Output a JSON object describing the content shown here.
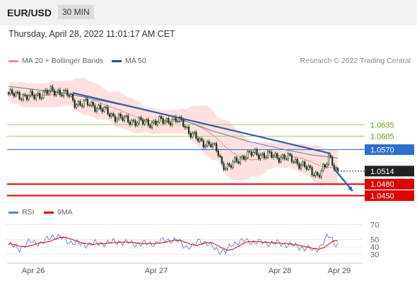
{
  "header": {
    "symbol": "EUR/USD",
    "timeframe": "30 MIN"
  },
  "timestamp": "Thursday, April 28, 2022 11:01:17 AM CET",
  "legend_main": [
    {
      "label": "MA 20 + Bollinger Bands",
      "color": "#f28b8b"
    },
    {
      "label": "MA 50",
      "color": "#2c4f8c"
    }
  ],
  "credit": "Research © 2022 Trading Central",
  "legend_rsi": [
    {
      "label": "RSI",
      "color": "#5b7fd6"
    },
    {
      "label": "9MA",
      "color": "#dd0000"
    }
  ],
  "x_labels": [
    "Apr 26",
    "Apr 27",
    "Apr 28",
    "Apr 29"
  ],
  "colors": {
    "resistance_green": "#a6cc6f",
    "level_blue": "#2f6fd0",
    "level_red": "#e00000",
    "current_label": "#222222",
    "candle_up": "#ffffff",
    "candle_down": "#1a3a1a",
    "bands": "#ffd6d6"
  },
  "chart_data": [
    {
      "type": "candlestick",
      "title": "EUR/USD 30 MIN",
      "ylim": [
        1.0438,
        1.0785
      ],
      "levels": [
        {
          "value": 1.0635,
          "label": "1.0635",
          "color": "#a6cc6f",
          "style": "thin"
        },
        {
          "value": 1.0605,
          "label": "1.0605",
          "color": "#a6cc6f",
          "style": "thin"
        },
        {
          "value": 1.057,
          "label": "1.0570",
          "color": "#2f6fd0",
          "style": "line"
        },
        {
          "value": 1.0514,
          "label": "1.0514",
          "color": "#222222",
          "style": "dotted"
        },
        {
          "value": 1.048,
          "label": "1.0480",
          "color": "#e00000",
          "style": "thick"
        },
        {
          "value": 1.045,
          "label": "1.0450",
          "color": "#e00000",
          "style": "thick"
        }
      ],
      "close_anchors": [
        [
          0,
          1.0715
        ],
        [
          8,
          1.071
        ],
        [
          14,
          1.0708
        ],
        [
          20,
          1.072
        ],
        [
          28,
          1.0722
        ],
        [
          32,
          1.0714
        ],
        [
          36,
          1.0692
        ],
        [
          42,
          1.069
        ],
        [
          48,
          1.0682
        ],
        [
          52,
          1.0672
        ],
        [
          56,
          1.066
        ],
        [
          62,
          1.065
        ],
        [
          70,
          1.0642
        ],
        [
          78,
          1.064
        ],
        [
          84,
          1.0645
        ],
        [
          90,
          1.0648
        ],
        [
          95,
          1.064
        ],
        [
          98,
          1.0618
        ],
        [
          104,
          1.059
        ],
        [
          110,
          1.0585
        ],
        [
          114,
          1.056
        ],
        [
          116,
          1.0532
        ],
        [
          120,
          1.0525
        ],
        [
          124,
          1.054
        ],
        [
          128,
          1.0555
        ],
        [
          134,
          1.056
        ],
        [
          140,
          1.0555
        ],
        [
          146,
          1.0552
        ],
        [
          152,
          1.0548
        ],
        [
          156,
          1.054
        ],
        [
          160,
          1.0528
        ],
        [
          164,
          1.0515
        ],
        [
          168,
          1.0505
        ],
        [
          172,
          1.0522
        ],
        [
          174,
          1.055
        ],
        [
          176,
          1.054
        ],
        [
          178,
          1.0518
        ],
        [
          179,
          1.0514
        ]
      ],
      "ma50_anchors": [
        [
          0,
          1.0735
        ],
        [
          30,
          1.0718
        ],
        [
          60,
          1.0688
        ],
        [
          90,
          1.0656
        ],
        [
          110,
          1.062
        ],
        [
          130,
          1.0592
        ],
        [
          150,
          1.057
        ],
        [
          165,
          1.0556
        ],
        [
          179,
          1.0548
        ]
      ],
      "trendline": {
        "start": [
          35,
          1.0718
        ],
        "end": [
          175,
          1.056
        ]
      },
      "projection": {
        "start": [
          177,
          1.052
        ],
        "end": [
          187,
          1.0462
        ]
      }
    },
    {
      "type": "line",
      "title": "RSI",
      "ylim": [
        20,
        80
      ],
      "ticks": [
        70,
        50,
        40,
        30
      ],
      "rsi_anchors": [
        [
          0,
          43
        ],
        [
          6,
          38
        ],
        [
          12,
          47
        ],
        [
          18,
          45
        ],
        [
          24,
          55
        ],
        [
          28,
          53
        ],
        [
          32,
          48
        ],
        [
          40,
          43
        ],
        [
          50,
          45
        ],
        [
          60,
          47
        ],
        [
          70,
          44
        ],
        [
          80,
          45
        ],
        [
          86,
          50
        ],
        [
          92,
          48
        ],
        [
          96,
          41
        ],
        [
          100,
          40
        ],
        [
          104,
          50
        ],
        [
          110,
          41
        ],
        [
          114,
          36
        ],
        [
          118,
          33
        ],
        [
          122,
          45
        ],
        [
          128,
          48
        ],
        [
          136,
          46
        ],
        [
          144,
          45
        ],
        [
          150,
          44
        ],
        [
          156,
          41
        ],
        [
          162,
          38
        ],
        [
          166,
          35
        ],
        [
          170,
          42
        ],
        [
          173,
          52
        ],
        [
          175,
          55
        ],
        [
          177,
          45
        ],
        [
          179,
          44
        ]
      ]
    }
  ]
}
